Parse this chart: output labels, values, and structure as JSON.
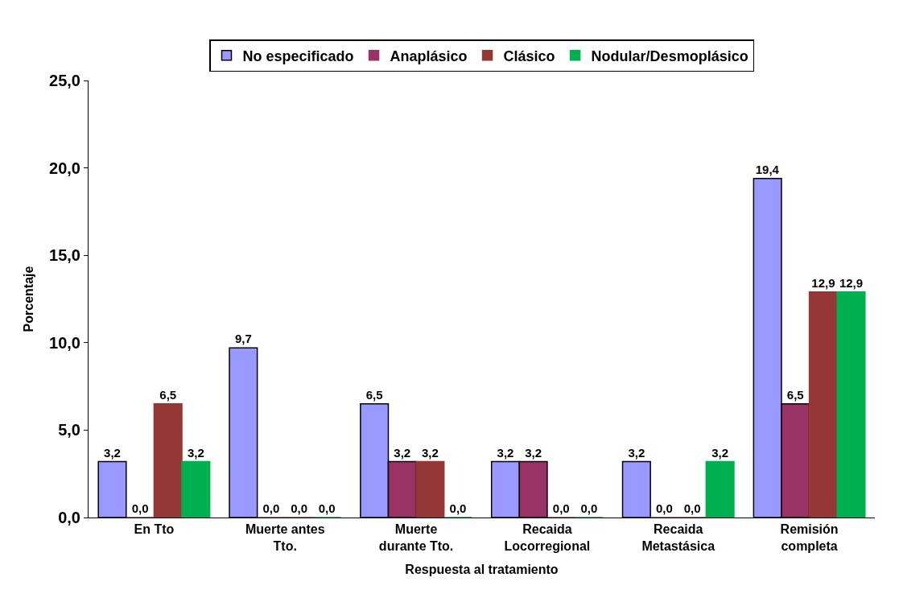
{
  "chart_data": {
    "type": "bar",
    "xlabel": "Respuesta al tratamiento",
    "ylabel": "Porcentaje",
    "categories": [
      "En Tto",
      "Muerte antes\nTto.",
      "Muerte\ndurante Tto.",
      "Recaida\nLocorregional",
      "Recaida\nMetastásica",
      "Remisión\ncompleta"
    ],
    "series": [
      {
        "name": "No especificado",
        "color": "#9999ff",
        "values": [
          3.2,
          9.7,
          6.5,
          3.2,
          3.2,
          19.4
        ],
        "value_labels": [
          "3,2",
          "9,7",
          "6,5",
          "3,2",
          "3,2",
          "19,4"
        ]
      },
      {
        "name": "Anaplásico",
        "color": "#993366",
        "values": [
          0,
          0,
          3.2,
          3.2,
          0,
          6.5
        ],
        "value_labels": [
          "0,0",
          "0,0",
          "3,2",
          "3,2",
          "0,0",
          "6,5"
        ]
      },
      {
        "name": "Clásico",
        "color": "#953735",
        "values": [
          6.5,
          0,
          3.2,
          0,
          0,
          12.9
        ],
        "value_labels": [
          "6,5",
          "0,0",
          "3,2",
          "0,0",
          "0,0",
          "12,9"
        ]
      },
      {
        "name": "Nodular/Desmoplásico",
        "color": "#00b050",
        "values": [
          3.2,
          0,
          0,
          0,
          3.2,
          12.9
        ],
        "value_labels": [
          "3,2",
          "0,0",
          "0,0",
          "0,0",
          "3,2",
          "12,9"
        ]
      }
    ],
    "ylim": [
      0,
      25
    ],
    "yticks": [
      {
        "value": 0,
        "label": "0,0"
      },
      {
        "value": 5,
        "label": "5,0"
      },
      {
        "value": 10,
        "label": "10,0"
      },
      {
        "value": 15,
        "label": "15,0"
      },
      {
        "value": 20,
        "label": "20,0"
      },
      {
        "value": 25,
        "label": "25,0"
      }
    ],
    "legend": "top"
  }
}
